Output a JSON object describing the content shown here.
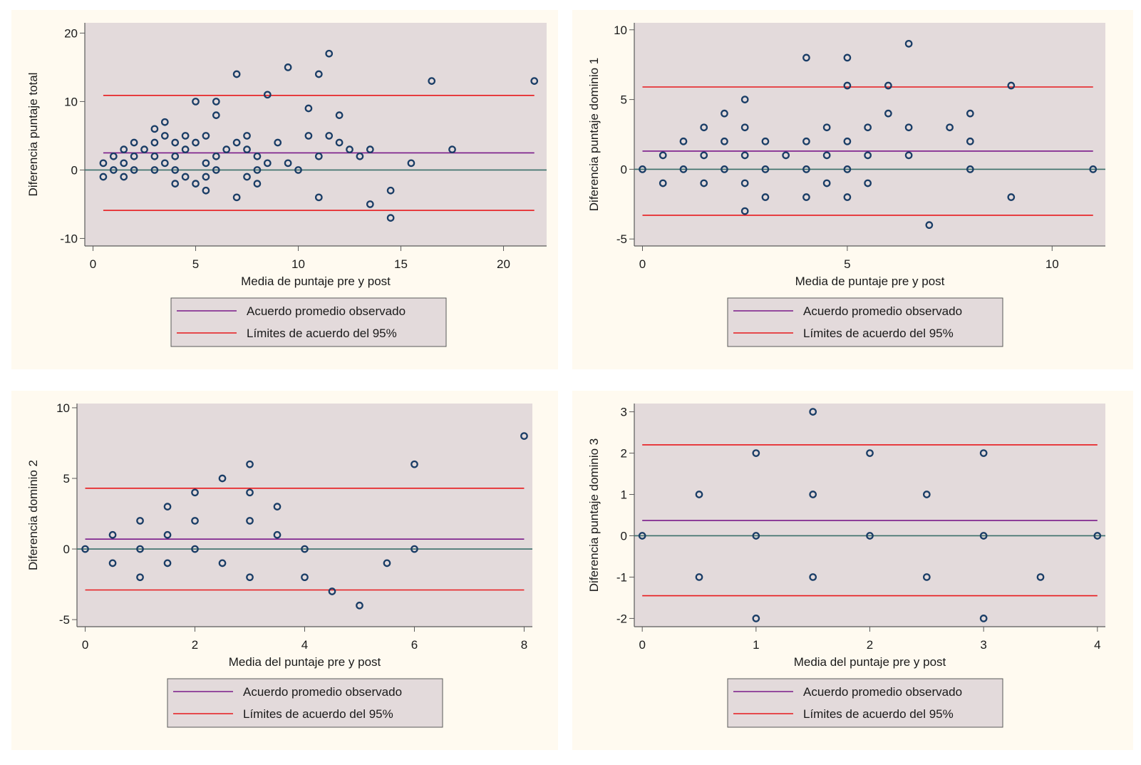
{
  "colors": {
    "panel_bg": "#fffaf0",
    "plot_bg": "#e3dadb",
    "marker": "#1a3d66",
    "mean_line": "#7a1a8a",
    "limit_line": "#e8191c",
    "zero_line": "#3b6f6a",
    "axis": "#5a5a5a"
  },
  "chart_data": [
    {
      "id": "total",
      "type": "scatter",
      "title": "",
      "xlabel": "Media de puntaje pre y post",
      "ylabel": "Diferencia puntaje total",
      "xlim": [
        -0.4,
        22.1
      ],
      "ylim": [
        -11.1,
        21.5
      ],
      "xticks": [
        0,
        5,
        10,
        15,
        20
      ],
      "yticks": [
        -10,
        0,
        10,
        20
      ],
      "grid": false,
      "mean": 2.5,
      "upper_limit": 10.9,
      "lower_limit": -5.9,
      "line_x_range": [
        0.5,
        21.5
      ],
      "legend": [
        "Acuerdo promedio observado",
        "Límites de acuerdo del 95%"
      ],
      "legend_position": "bottom-center",
      "points": [
        [
          0.5,
          1
        ],
        [
          0.5,
          -1
        ],
        [
          1,
          2
        ],
        [
          1,
          0
        ],
        [
          1.5,
          3
        ],
        [
          1.5,
          1
        ],
        [
          1.5,
          -1
        ],
        [
          2,
          4
        ],
        [
          2,
          2
        ],
        [
          2,
          0
        ],
        [
          2.5,
          3
        ],
        [
          3,
          6
        ],
        [
          3,
          4
        ],
        [
          3,
          2
        ],
        [
          3,
          0
        ],
        [
          3.5,
          7
        ],
        [
          3.5,
          5
        ],
        [
          3.5,
          1
        ],
        [
          4,
          4
        ],
        [
          4,
          2
        ],
        [
          4,
          0
        ],
        [
          4,
          -2
        ],
        [
          4.5,
          5
        ],
        [
          4.5,
          3
        ],
        [
          4.5,
          -1
        ],
        [
          5,
          10
        ],
        [
          5,
          4
        ],
        [
          5,
          -2
        ],
        [
          5.5,
          5
        ],
        [
          5.5,
          1
        ],
        [
          5.5,
          -1
        ],
        [
          5.5,
          -3
        ],
        [
          6,
          10
        ],
        [
          6,
          8
        ],
        [
          6,
          2
        ],
        [
          6,
          0
        ],
        [
          6.5,
          3
        ],
        [
          7,
          14
        ],
        [
          7,
          4
        ],
        [
          7,
          -4
        ],
        [
          7.5,
          5
        ],
        [
          7.5,
          3
        ],
        [
          7.5,
          -1
        ],
        [
          8,
          2
        ],
        [
          8,
          0
        ],
        [
          8,
          -2
        ],
        [
          8.5,
          11
        ],
        [
          8.5,
          1
        ],
        [
          9,
          4
        ],
        [
          9.5,
          15
        ],
        [
          9.5,
          1
        ],
        [
          10,
          0
        ],
        [
          10.5,
          9
        ],
        [
          10.5,
          5
        ],
        [
          11,
          14
        ],
        [
          11,
          2
        ],
        [
          11,
          -4
        ],
        [
          11.5,
          17
        ],
        [
          11.5,
          5
        ],
        [
          12,
          8
        ],
        [
          12,
          4
        ],
        [
          12.5,
          3
        ],
        [
          13,
          2
        ],
        [
          13.5,
          3
        ],
        [
          13.5,
          -5
        ],
        [
          14.5,
          -3
        ],
        [
          14.5,
          -7
        ],
        [
          15.5,
          1
        ],
        [
          16.5,
          13
        ],
        [
          17.5,
          3
        ],
        [
          21.5,
          13
        ]
      ]
    },
    {
      "id": "dominio1",
      "type": "scatter",
      "title": "",
      "xlabel": "Media de puntaje pre y post",
      "ylabel": "Diferencia puntaje dominio 1",
      "xlim": [
        -0.2,
        11.3
      ],
      "ylim": [
        -5.5,
        10.5
      ],
      "xticks": [
        0,
        5,
        10
      ],
      "yticks": [
        -5,
        0,
        5,
        10
      ],
      "grid": false,
      "mean": 1.3,
      "upper_limit": 5.9,
      "lower_limit": -3.3,
      "line_x_range": [
        0,
        11
      ],
      "legend": [
        "Acuerdo promedio observado",
        "Límites de acuerdo del 95%"
      ],
      "legend_position": "bottom-center",
      "points": [
        [
          0,
          0
        ],
        [
          0.5,
          1
        ],
        [
          0.5,
          -1
        ],
        [
          1,
          2
        ],
        [
          1,
          0
        ],
        [
          1.5,
          3
        ],
        [
          1.5,
          1
        ],
        [
          1.5,
          -1
        ],
        [
          2,
          4
        ],
        [
          2,
          2
        ],
        [
          2,
          0
        ],
        [
          2.5,
          5
        ],
        [
          2.5,
          3
        ],
        [
          2.5,
          1
        ],
        [
          2.5,
          -1
        ],
        [
          2.5,
          -3
        ],
        [
          3,
          2
        ],
        [
          3,
          0
        ],
        [
          3,
          -2
        ],
        [
          3.5,
          1
        ],
        [
          4,
          8
        ],
        [
          4,
          2
        ],
        [
          4,
          0
        ],
        [
          4,
          -2
        ],
        [
          4.5,
          3
        ],
        [
          4.5,
          1
        ],
        [
          4.5,
          -1
        ],
        [
          5,
          8
        ],
        [
          5,
          6
        ],
        [
          5,
          2
        ],
        [
          5,
          0
        ],
        [
          5,
          -2
        ],
        [
          5.5,
          3
        ],
        [
          5.5,
          1
        ],
        [
          5.5,
          -1
        ],
        [
          6,
          6
        ],
        [
          6,
          4
        ],
        [
          6.5,
          9
        ],
        [
          6.5,
          3
        ],
        [
          6.5,
          1
        ],
        [
          7,
          -4
        ],
        [
          7.5,
          3
        ],
        [
          8,
          4
        ],
        [
          8,
          2
        ],
        [
          8,
          0
        ],
        [
          9,
          6
        ],
        [
          9,
          -2
        ],
        [
          11,
          0
        ]
      ]
    },
    {
      "id": "dominio2",
      "type": "scatter",
      "title": "",
      "xlabel": "Media del puntaje pre y post",
      "ylabel": "Diferencia dominio 2",
      "xlim": [
        -0.15,
        8.15
      ],
      "ylim": [
        -5.5,
        10.3
      ],
      "xticks": [
        0,
        2,
        4,
        6,
        8
      ],
      "yticks": [
        -5,
        0,
        5,
        10
      ],
      "grid": false,
      "mean": 0.7,
      "upper_limit": 4.3,
      "lower_limit": -2.9,
      "line_x_range": [
        0,
        8
      ],
      "legend": [
        "Acuerdo promedio observado",
        "Límites de acuerdo del 95%"
      ],
      "legend_position": "bottom-center",
      "points": [
        [
          0,
          0
        ],
        [
          0.5,
          1
        ],
        [
          0.5,
          -1
        ],
        [
          1,
          2
        ],
        [
          1,
          0
        ],
        [
          1,
          -2
        ],
        [
          1.5,
          3
        ],
        [
          1.5,
          1
        ],
        [
          1.5,
          -1
        ],
        [
          2,
          4
        ],
        [
          2,
          2
        ],
        [
          2,
          0
        ],
        [
          2.5,
          5
        ],
        [
          2.5,
          -1
        ],
        [
          3,
          6
        ],
        [
          3,
          4
        ],
        [
          3,
          2
        ],
        [
          3,
          -2
        ],
        [
          3.5,
          3
        ],
        [
          3.5,
          1
        ],
        [
          4,
          0
        ],
        [
          4,
          -2
        ],
        [
          4.5,
          -3
        ],
        [
          5,
          -4
        ],
        [
          5.5,
          -1
        ],
        [
          6,
          6
        ],
        [
          6,
          0
        ],
        [
          8,
          8
        ]
      ]
    },
    {
      "id": "dominio3",
      "type": "scatter",
      "title": "",
      "xlabel": "Media del puntaje pre y post",
      "ylabel": "Diferencia puntaje dominio 3",
      "xlim": [
        -0.07,
        4.07
      ],
      "ylim": [
        -2.2,
        3.2
      ],
      "xticks": [
        0,
        1,
        2,
        3,
        4
      ],
      "yticks": [
        -2,
        -1,
        0,
        1,
        2,
        3
      ],
      "grid": false,
      "mean": 0.37,
      "upper_limit": 2.2,
      "lower_limit": -1.45,
      "line_x_range": [
        0,
        4
      ],
      "legend": [
        "Acuerdo promedio observado",
        "Límites de acuerdo del 95%"
      ],
      "legend_position": "bottom-center",
      "points": [
        [
          0,
          0
        ],
        [
          0.5,
          1
        ],
        [
          0.5,
          -1
        ],
        [
          1,
          2
        ],
        [
          1,
          0
        ],
        [
          1,
          -2
        ],
        [
          1.5,
          3
        ],
        [
          1.5,
          1
        ],
        [
          1.5,
          -1
        ],
        [
          2,
          2
        ],
        [
          2,
          0
        ],
        [
          2.5,
          1
        ],
        [
          2.5,
          -1
        ],
        [
          3,
          2
        ],
        [
          3,
          0
        ],
        [
          3,
          -2
        ],
        [
          3.5,
          -1
        ],
        [
          4,
          0
        ]
      ]
    }
  ]
}
